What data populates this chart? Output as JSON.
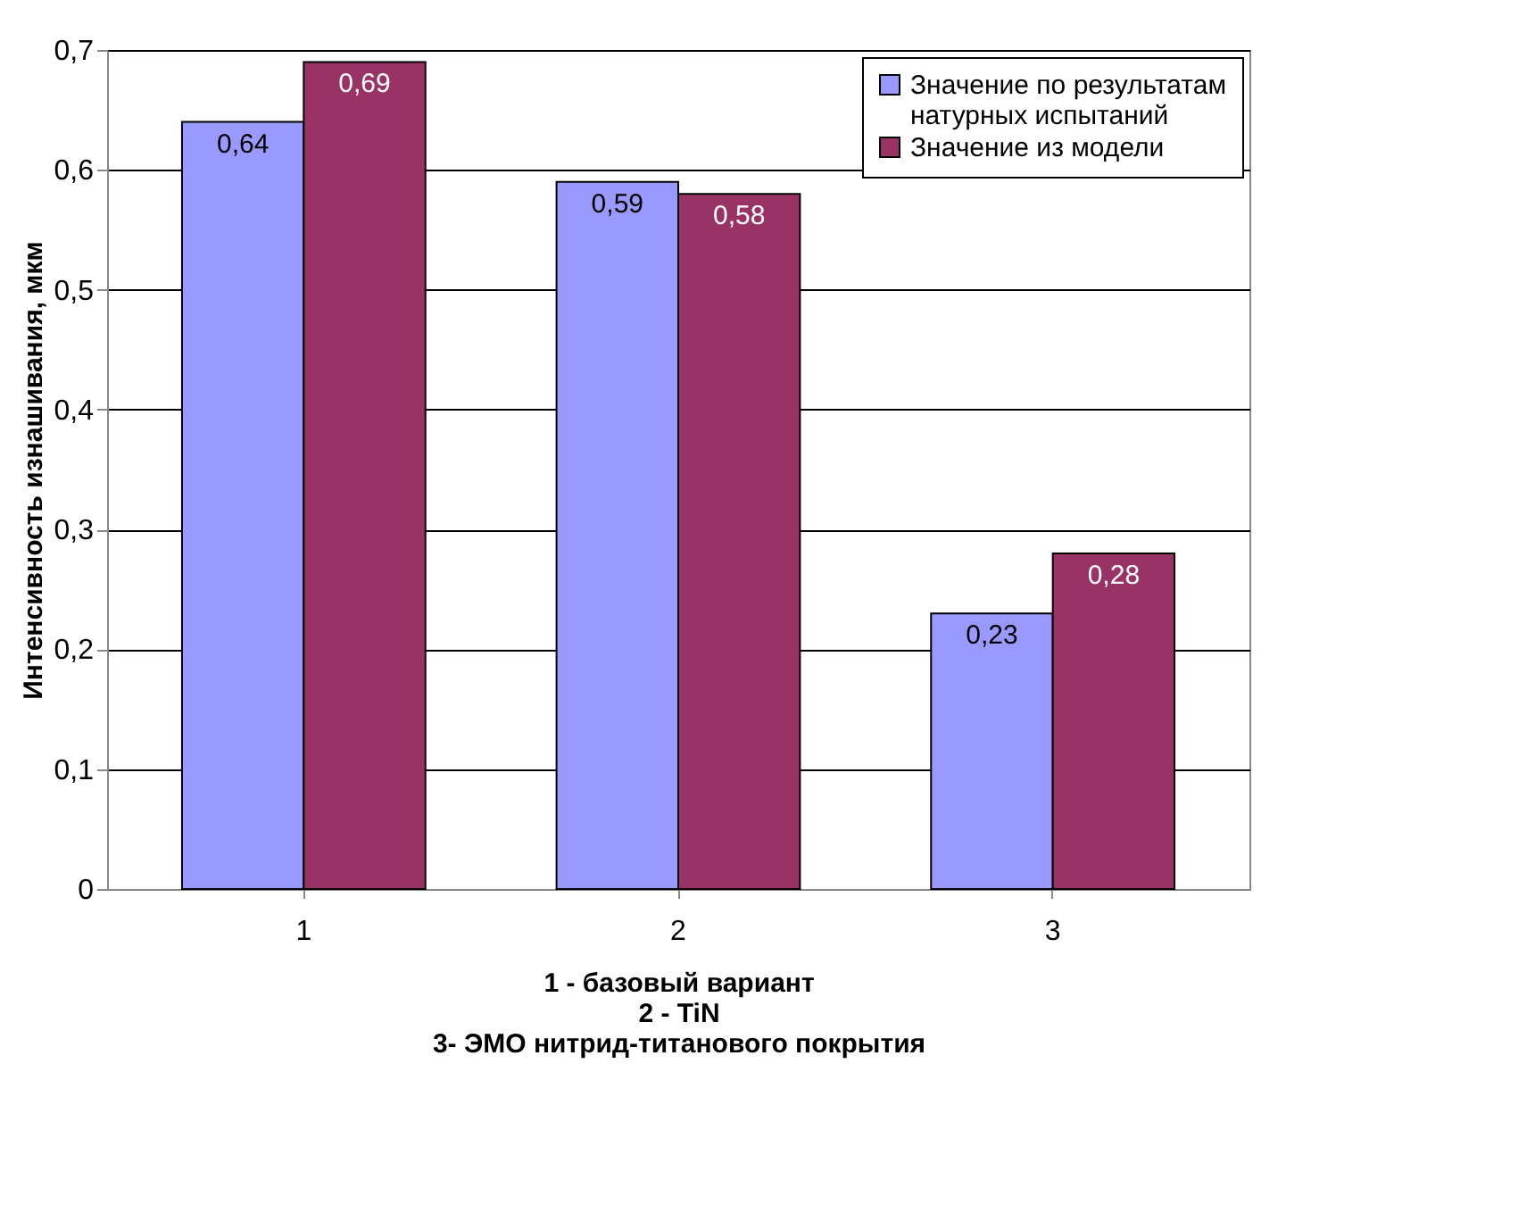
{
  "chart_data": {
    "type": "bar",
    "xlabel": "1 - базовый вариант\n2 - TiN\n3- ЭМО нитрид-титанового покрытия",
    "ylabel": "Интенсивность изнашивания, мкм",
    "categories": [
      "1",
      "2",
      "3"
    ],
    "series": [
      {
        "name": "Значение по результатам натурных испытаний",
        "color": "#9999ff",
        "values": [
          0.64,
          0.59,
          0.23
        ],
        "value_labels": [
          "0,64",
          "0,59",
          "0,23"
        ]
      },
      {
        "name": "Значение из модели",
        "color": "#993366",
        "values": [
          0.69,
          0.58,
          0.28
        ],
        "value_labels": [
          "0,69",
          "0,58",
          "0,28"
        ]
      }
    ],
    "ylim": [
      0,
      0.7
    ],
    "yticks": [
      0,
      {
        "value": 0.1,
        "label": "0,1"
      },
      {
        "value": 0.2,
        "label": "0,2"
      },
      {
        "value": 0.3,
        "label": "0,3"
      },
      {
        "value": 0.4,
        "label": "0,4"
      },
      {
        "value": 0.5,
        "label": "0,5"
      },
      {
        "value": 0.6,
        "label": "0,6"
      },
      {
        "value": 0.7,
        "label": "0,7"
      }
    ],
    "grid": "y",
    "legend": "top right"
  }
}
